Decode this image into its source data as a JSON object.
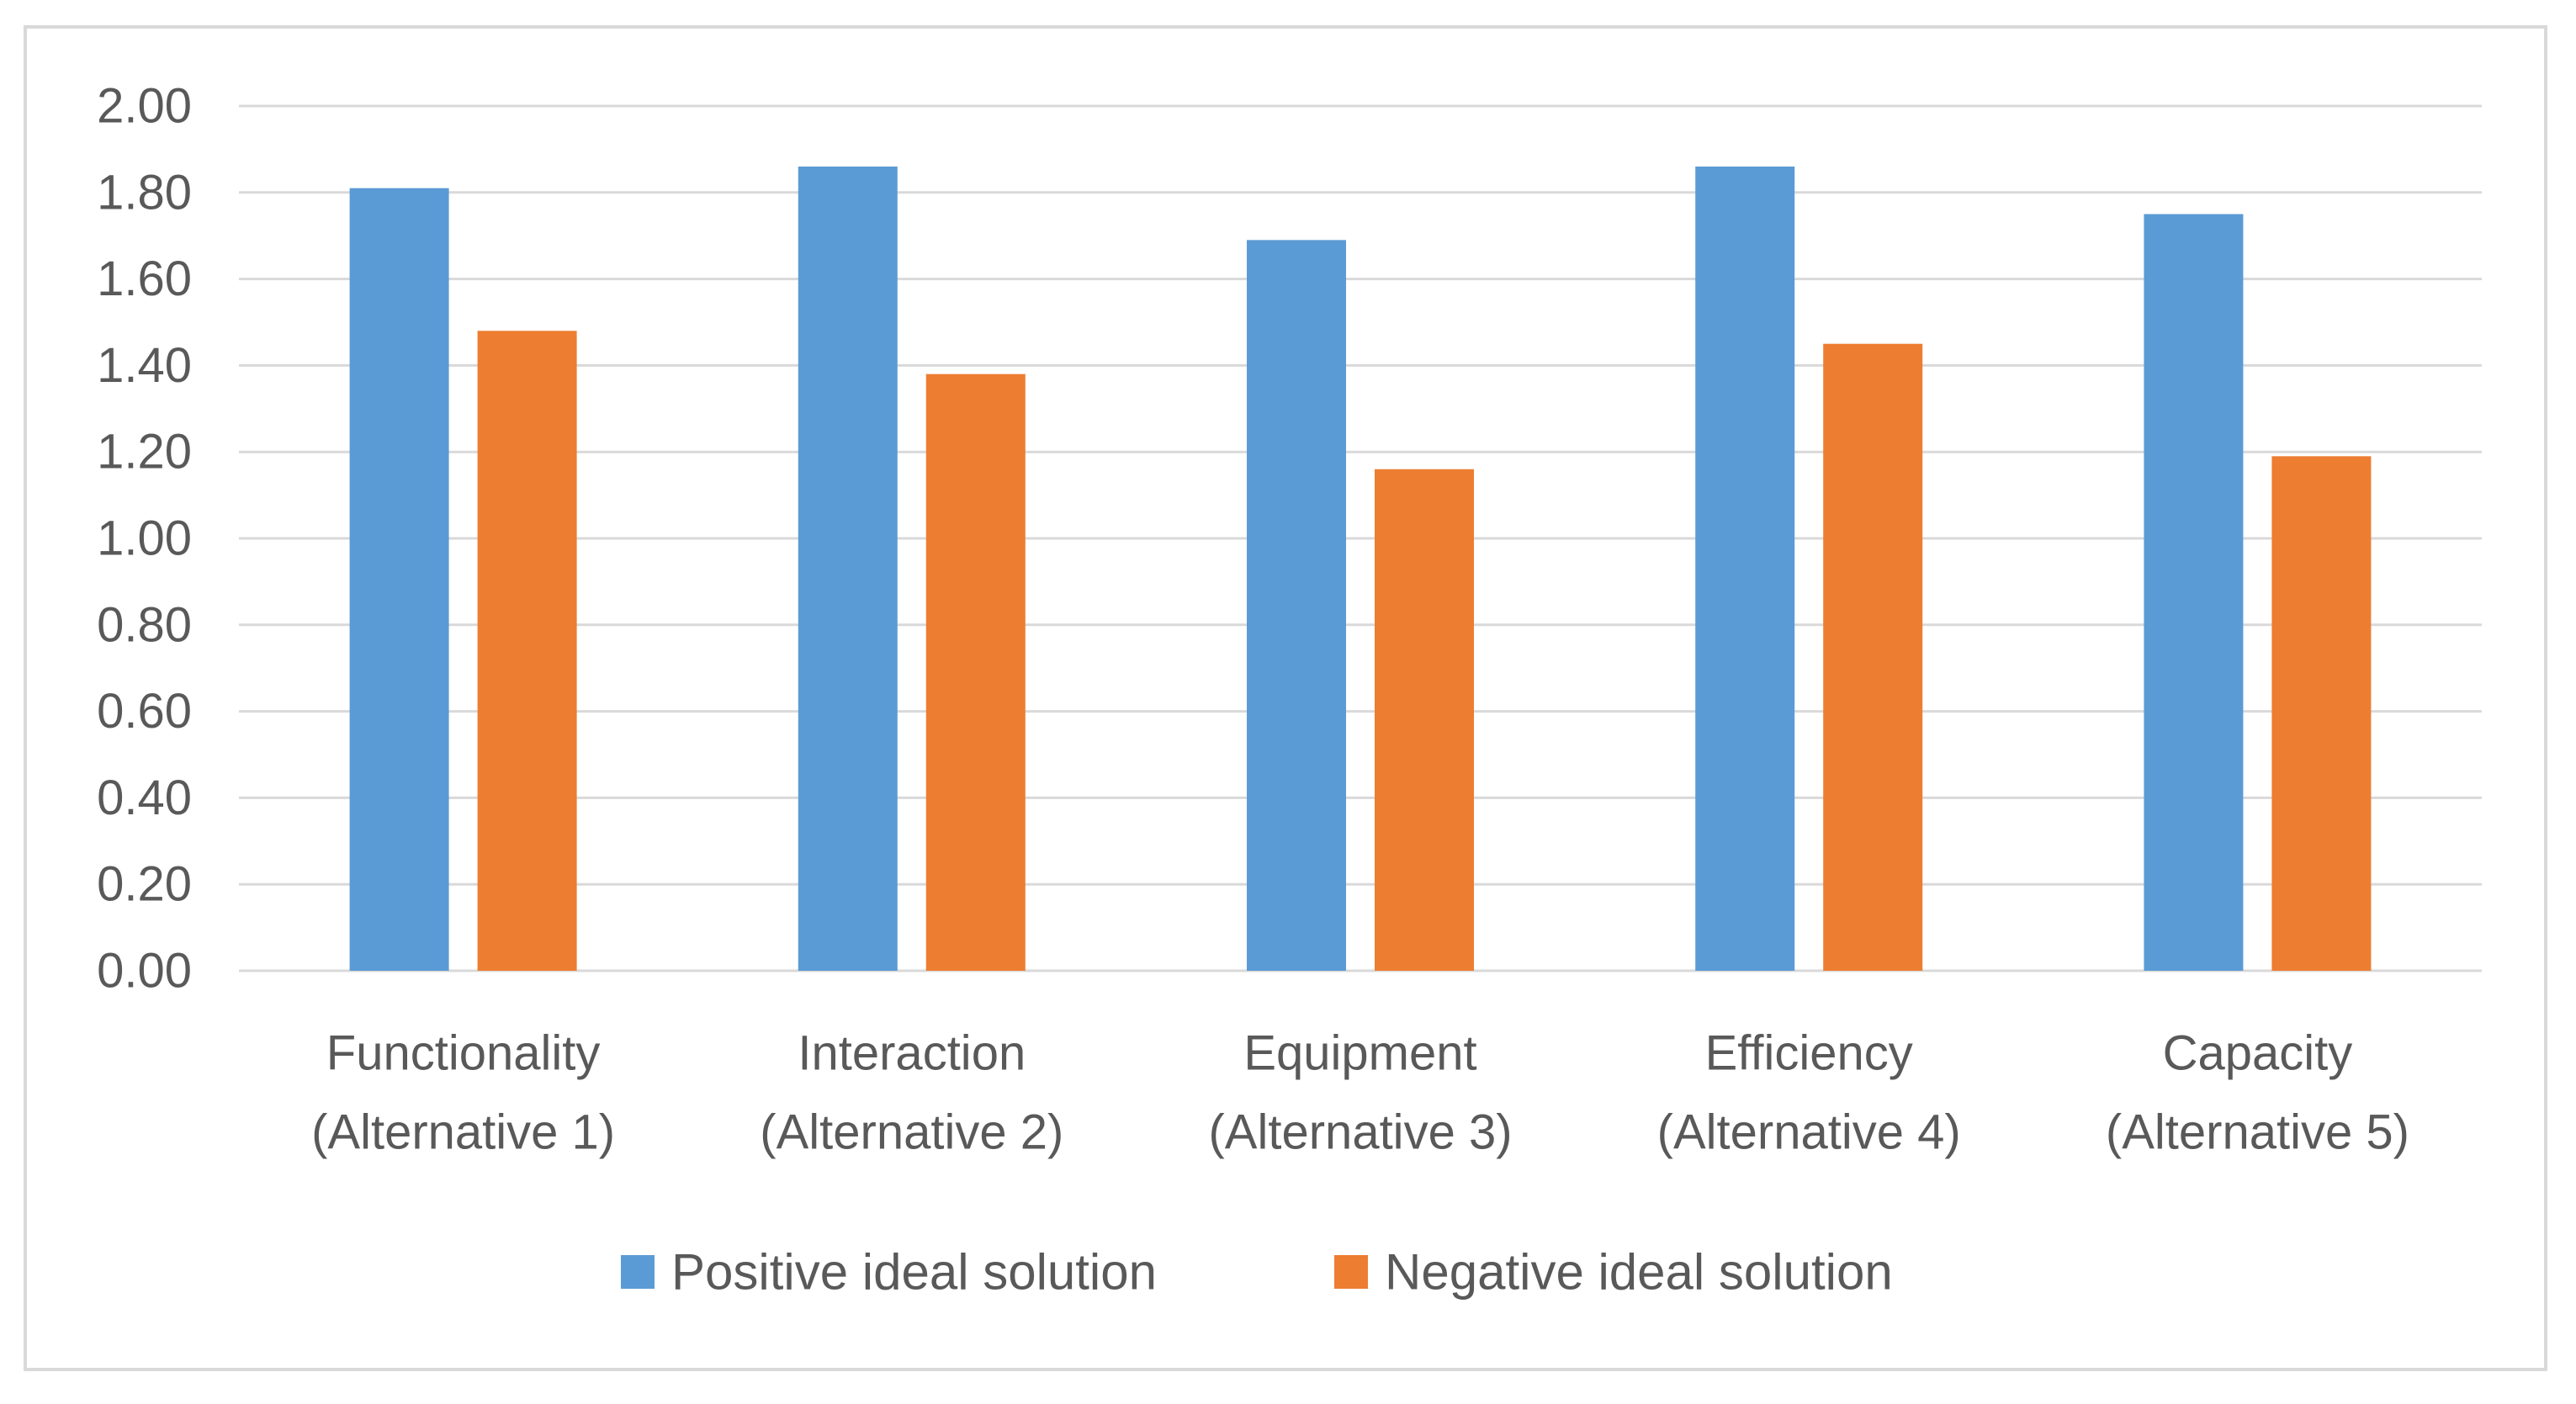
{
  "chart_data": {
    "type": "bar",
    "title": "",
    "xlabel": "",
    "ylabel": "",
    "categories": [
      [
        "Functionality",
        "(Alternative 1)"
      ],
      [
        "Interaction",
        "(Alternative 2)"
      ],
      [
        "Equipment",
        "(Alternative 3)"
      ],
      [
        "Efficiency",
        "(Alternative 4)"
      ],
      [
        "Capacity",
        "(Alternative 5)"
      ]
    ],
    "series": [
      {
        "name": "Positive ideal solution",
        "color": "#5b9bd5",
        "values": [
          1.81,
          1.86,
          1.69,
          1.86,
          1.75
        ]
      },
      {
        "name": "Negative ideal solution",
        "color": "#ed7d31",
        "values": [
          1.48,
          1.38,
          1.16,
          1.45,
          1.19
        ]
      }
    ],
    "ylim": [
      0,
      2.0
    ],
    "ytick_step": 0.2,
    "ytick_labels": [
      "0.00",
      "0.20",
      "0.40",
      "0.60",
      "0.80",
      "1.00",
      "1.20",
      "1.40",
      "1.60",
      "1.80",
      "2.00"
    ],
    "grid": true,
    "gridline_color": "#d9d9d9",
    "legend_position": "bottom"
  }
}
